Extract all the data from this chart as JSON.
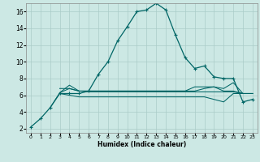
{
  "xlabel": "Humidex (Indice chaleur)",
  "bg_color": "#cce8e4",
  "grid_color": "#aaccc8",
  "line_color": "#006666",
  "xlim": [
    -0.5,
    23.5
  ],
  "ylim": [
    1.5,
    17.0
  ],
  "yticks": [
    2,
    4,
    6,
    8,
    10,
    12,
    14,
    16
  ],
  "xticks": [
    0,
    1,
    2,
    3,
    4,
    5,
    6,
    7,
    8,
    9,
    10,
    11,
    12,
    13,
    14,
    15,
    16,
    17,
    18,
    19,
    20,
    21,
    22,
    23
  ],
  "series": [
    {
      "x": [
        0,
        1,
        2,
        3,
        4,
        5,
        6,
        7,
        8,
        9,
        10,
        11,
        12,
        13,
        14,
        15,
        16,
        17,
        18,
        19,
        20,
        21,
        22,
        23
      ],
      "y": [
        2.2,
        3.2,
        4.5,
        6.2,
        6.2,
        6.2,
        6.5,
        8.5,
        10.0,
        12.5,
        14.2,
        16.0,
        16.2,
        17.0,
        16.2,
        13.2,
        10.5,
        9.2,
        9.5,
        8.2,
        8.0,
        8.0,
        5.2,
        5.5
      ],
      "marker": "+"
    },
    {
      "x": [
        2,
        3,
        4,
        5,
        6,
        7,
        8,
        9,
        10,
        11,
        12,
        13,
        14,
        15,
        16,
        17,
        18,
        19,
        20,
        21,
        22,
        23
      ],
      "y": [
        4.5,
        6.3,
        6.8,
        6.5,
        6.5,
        6.5,
        6.5,
        6.5,
        6.5,
        6.5,
        6.5,
        6.5,
        6.5,
        6.5,
        6.5,
        7.0,
        7.0,
        7.0,
        6.5,
        6.5,
        6.2,
        6.2
      ],
      "marker": null
    },
    {
      "x": [
        3,
        4,
        5,
        6,
        7,
        8,
        9,
        10,
        11,
        12,
        13,
        14,
        15,
        16,
        17,
        18,
        19,
        20,
        21,
        22,
        23
      ],
      "y": [
        6.2,
        6.0,
        5.8,
        5.8,
        5.8,
        5.8,
        5.8,
        5.8,
        5.8,
        5.8,
        5.8,
        5.8,
        5.8,
        5.8,
        5.8,
        5.8,
        5.5,
        5.2,
        6.2,
        6.2,
        6.2
      ],
      "marker": null
    },
    {
      "x": [
        3,
        4,
        5,
        6,
        7,
        8,
        9,
        10,
        11,
        12,
        13,
        14,
        15,
        16,
        17,
        18,
        19,
        20,
        21,
        22,
        23
      ],
      "y": [
        6.8,
        6.8,
        6.5,
        6.5,
        6.5,
        6.5,
        6.5,
        6.5,
        6.5,
        6.5,
        6.5,
        6.5,
        6.5,
        6.5,
        6.5,
        6.8,
        7.0,
        6.8,
        7.5,
        6.2,
        6.2
      ],
      "marker": null
    },
    {
      "x": [
        3,
        4,
        5,
        6,
        7,
        8,
        9,
        10,
        11,
        12,
        13,
        14,
        15,
        16,
        17,
        18,
        19,
        20,
        21,
        22,
        23
      ],
      "y": [
        6.3,
        7.2,
        6.5,
        6.4,
        6.4,
        6.4,
        6.4,
        6.4,
        6.4,
        6.4,
        6.4,
        6.4,
        6.4,
        6.4,
        6.4,
        6.4,
        6.4,
        6.4,
        6.4,
        6.2,
        6.2
      ],
      "marker": null
    }
  ]
}
